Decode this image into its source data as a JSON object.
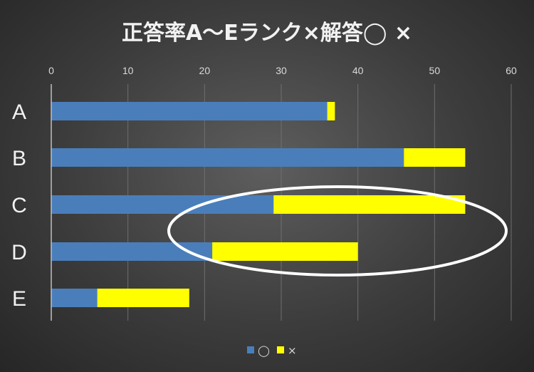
{
  "chart_data": {
    "type": "bar",
    "orientation": "horizontal",
    "stacked": true,
    "title": "正答率A～Eランク×解答◯ ×",
    "categories": [
      "A",
      "B",
      "C",
      "D",
      "E"
    ],
    "series": [
      {
        "name": "◯",
        "color": "#4a7ebb",
        "values": [
          36,
          46,
          29,
          21,
          6
        ]
      },
      {
        "name": "×",
        "color": "#ffff00",
        "values": [
          1,
          8,
          25,
          19,
          12
        ]
      }
    ],
    "x_ticks": [
      "0",
      "10",
      "20",
      "30",
      "40",
      "50",
      "60"
    ],
    "xlim": [
      0,
      60
    ],
    "x_axis_position": "top",
    "grid": true,
    "legend_position": "bottom",
    "annotation": {
      "shape": "ellipse",
      "color": "#ffffff",
      "highlights": [
        "C",
        "D"
      ]
    }
  }
}
